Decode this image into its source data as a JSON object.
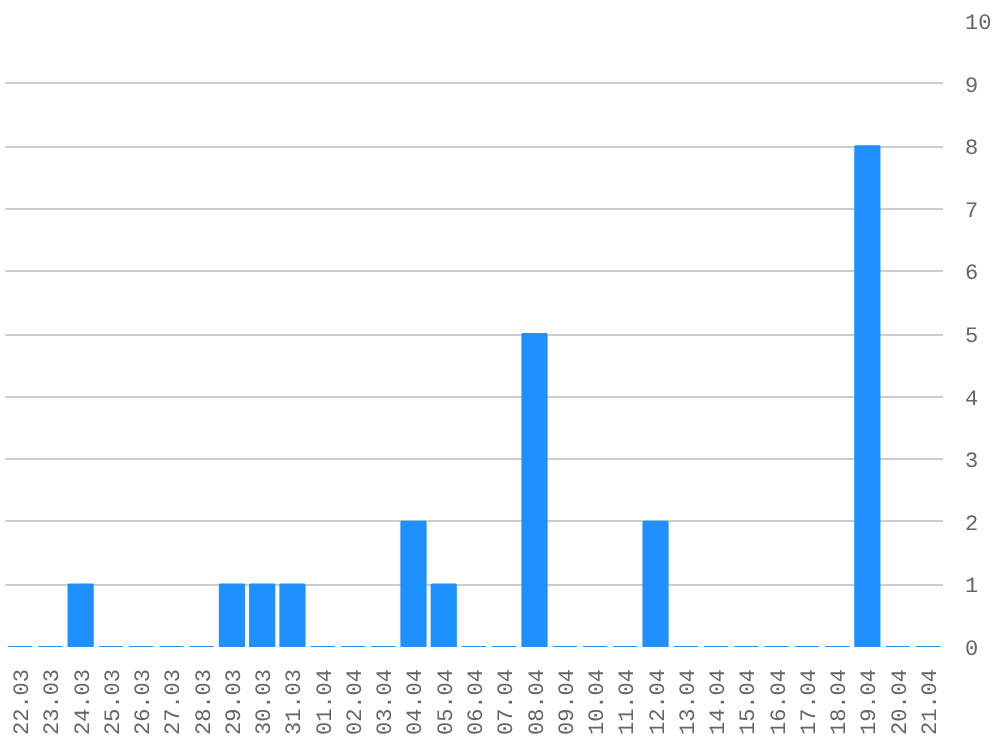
{
  "chart_data": {
    "type": "bar",
    "categories": [
      "22.03",
      "23.03",
      "24.03",
      "25.03",
      "26.03",
      "27.03",
      "28.03",
      "29.03",
      "30.03",
      "31.03",
      "01.04",
      "02.04",
      "03.04",
      "04.04",
      "05.04",
      "06.04",
      "07.04",
      "08.04",
      "09.04",
      "10.04",
      "11.04",
      "12.04",
      "13.04",
      "14.04",
      "15.04",
      "16.04",
      "17.04",
      "18.04",
      "19.04",
      "20.04",
      "21.04"
    ],
    "values": [
      0,
      0,
      1,
      0,
      0,
      0,
      0,
      1,
      1,
      1,
      0,
      0,
      0,
      2,
      1,
      0,
      0,
      5,
      0,
      0,
      0,
      2,
      0,
      0,
      0,
      0,
      0,
      0,
      8,
      0,
      0
    ],
    "color": "#1e90ff",
    "ylim": [
      0,
      10
    ],
    "yticks": [
      0,
      1,
      2,
      3,
      4,
      5,
      6,
      7,
      8,
      9,
      10
    ],
    "grid": "y"
  }
}
